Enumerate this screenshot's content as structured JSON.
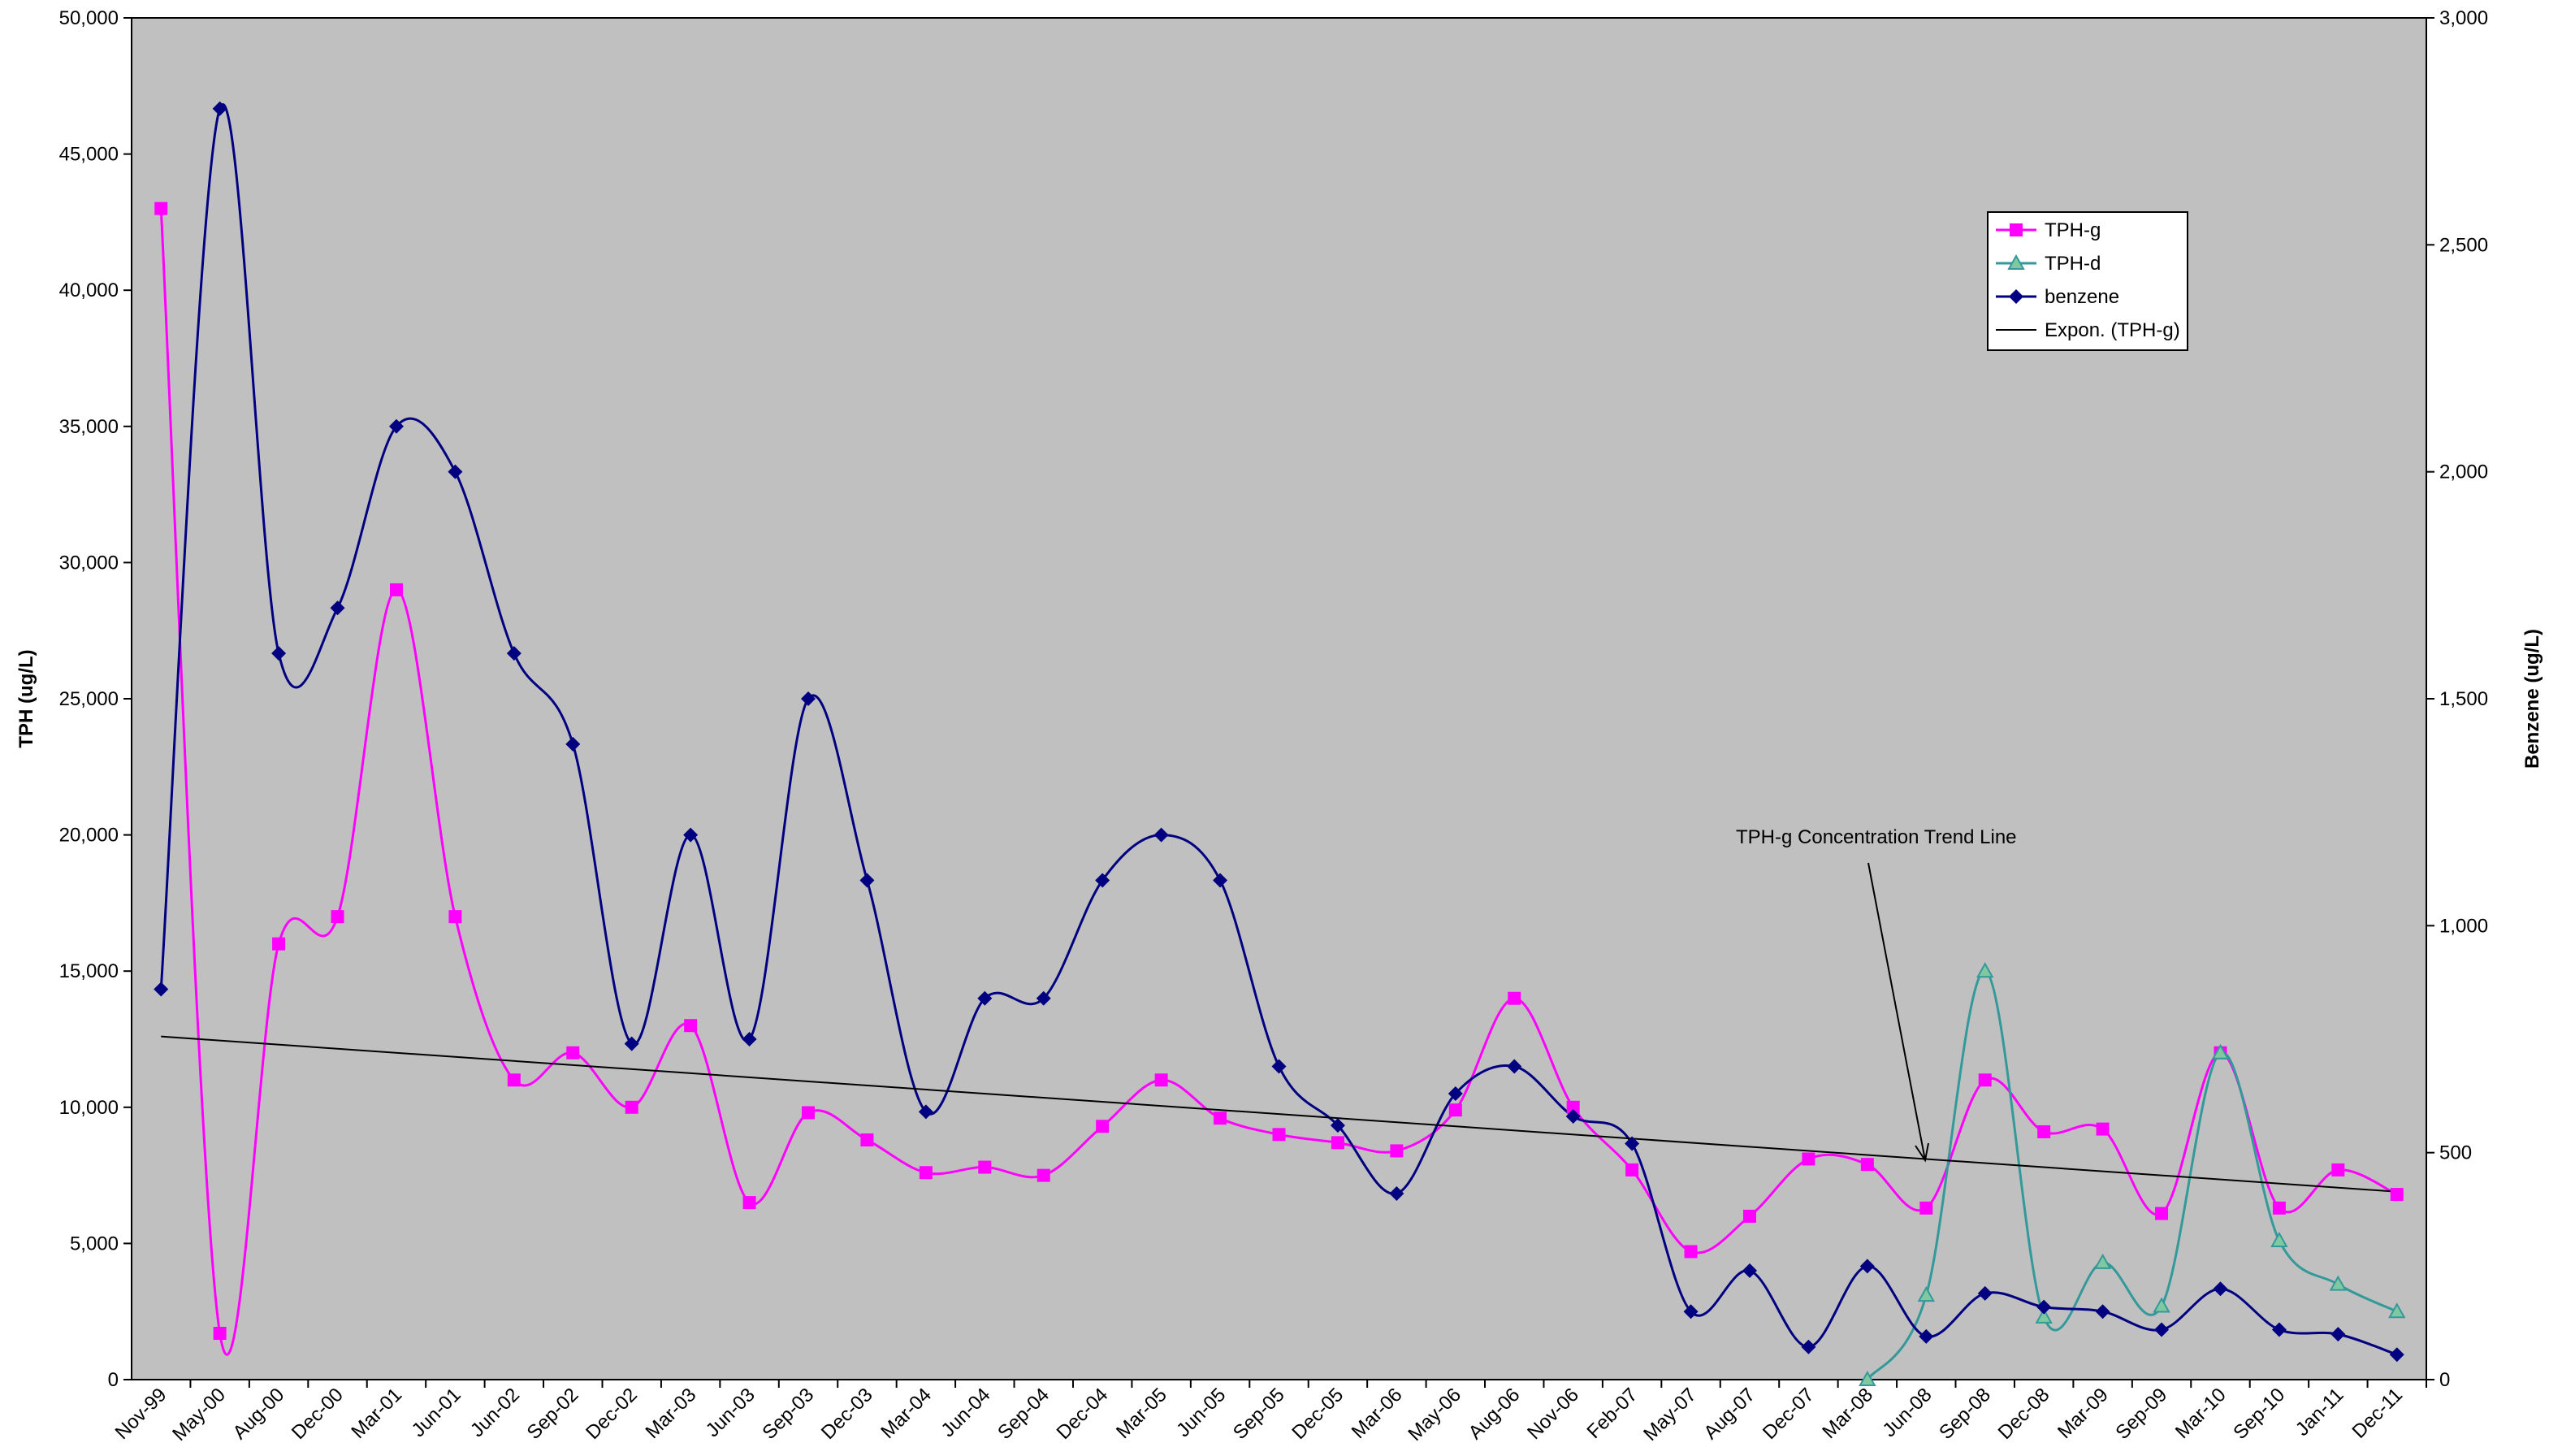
{
  "chart_data": {
    "type": "line",
    "y_label": "TPH (ug/L)",
    "y2_label": "Benzene (ug/L)",
    "annotation": "TPH-g Concentration Trend Line",
    "legend": "upper right",
    "background": "#c0c0c0",
    "categories": [
      "Nov-99",
      "May-00",
      "Aug-00",
      "Dec-00",
      "Mar-01",
      "Jun-01",
      "Jun-02",
      "Sep-02",
      "Dec-02",
      "Mar-03",
      "Jun-03",
      "Sep-03",
      "Dec-03",
      "Mar-04",
      "Jun-04",
      "Sep-04",
      "Dec-04",
      "Mar-05",
      "Jun-05",
      "Sep-05",
      "Dec-05",
      "Mar-06",
      "May-06",
      "Aug-06",
      "Nov-06",
      "Feb-07",
      "May-07",
      "Aug-07",
      "Dec-07",
      "Mar-08",
      "Jun-08",
      "Sep-08",
      "Dec-08",
      "Mar-09",
      "Sep-09",
      "Mar-10",
      "Sep-10",
      "Jan-11",
      "Dec-11"
    ],
    "ylim": [
      0,
      50000
    ],
    "yticks": [
      0,
      {
        "value": 5000,
        "label": "5,000"
      },
      {
        "value": 10000,
        "label": "10,000"
      },
      {
        "value": 15000,
        "label": "15,000"
      },
      {
        "value": 20000,
        "label": "20,000"
      },
      {
        "value": 25000,
        "label": "25,000"
      },
      {
        "value": 30000,
        "label": "30,000"
      },
      {
        "value": 35000,
        "label": "35,000"
      },
      {
        "value": 40000,
        "label": "40,000"
      },
      {
        "value": 45000,
        "label": "45,000"
      },
      {
        "value": 50000,
        "label": "50,000"
      }
    ],
    "y2lim": [
      0,
      3000
    ],
    "y2ticks": [
      0,
      500,
      {
        "value": 1000,
        "label": "1,000"
      },
      {
        "value": 1500,
        "label": "1,500"
      },
      {
        "value": 2000,
        "label": "2,000"
      },
      {
        "value": 2500,
        "label": "2,500"
      },
      {
        "value": 3000,
        "label": "3,000"
      }
    ],
    "series": [
      {
        "name": "TPH-g",
        "color": "#ff00ff",
        "marker": "square",
        "values": [
          43000,
          1700,
          16000,
          17000,
          29000,
          17000,
          11000,
          12000,
          10000,
          13000,
          6500,
          9800,
          8800,
          7600,
          7800,
          7500,
          9300,
          11000,
          9600,
          9000,
          8700,
          8400,
          9900,
          14000,
          10000,
          7700,
          4700,
          6000,
          8100,
          7900,
          6300,
          11000,
          9100,
          9200,
          6100,
          12000,
          6300,
          7700,
          6800
        ]
      },
      {
        "name": "TPH-d",
        "color": "#339999",
        "marker": "triangle",
        "values": [
          null,
          null,
          null,
          null,
          null,
          null,
          null,
          null,
          null,
          null,
          null,
          null,
          null,
          null,
          null,
          null,
          null,
          null,
          null,
          null,
          null,
          null,
          null,
          null,
          null,
          null,
          null,
          null,
          null,
          0,
          3100,
          15000,
          2300,
          4300,
          2700,
          12000,
          5100,
          3500,
          2500
        ]
      },
      {
        "name": "benzene",
        "color": "#000080",
        "marker": "diamond",
        "axis": "y2",
        "values": [
          860,
          2800,
          1600,
          1700,
          2100,
          2000,
          1600,
          1400,
          740,
          1200,
          750,
          1500,
          1100,
          590,
          840,
          840,
          1100,
          1200,
          1100,
          690,
          560,
          410,
          630,
          690,
          580,
          520,
          150,
          240,
          72,
          250,
          95,
          190,
          160,
          150,
          110,
          200,
          110,
          100,
          55
        ]
      },
      {
        "name": "Expon. (TPH-g)",
        "color": "#000000",
        "marker": "none",
        "values": [
          12600,
          null,
          null,
          null,
          null,
          null,
          null,
          null,
          null,
          null,
          null,
          null,
          null,
          null,
          null,
          null,
          null,
          null,
          null,
          null,
          null,
          null,
          null,
          null,
          null,
          null,
          null,
          null,
          null,
          null,
          null,
          null,
          null,
          null,
          null,
          null,
          null,
          null,
          6900
        ]
      }
    ]
  }
}
